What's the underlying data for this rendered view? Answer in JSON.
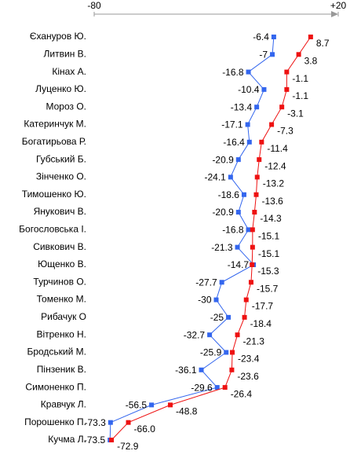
{
  "chart_data": {
    "type": "line",
    "categories": [
      "Єхануров Ю.",
      "Литвин В.",
      "Кінах А.",
      "Луценко Ю.",
      "Мороз О.",
      "Катеринчук М.",
      "Богатирьова Р.",
      "Губський Б.",
      "Зінченко О.",
      "Тимошенко Ю.",
      "Янукович  В.",
      "Богословська І.",
      "Сивкович В.",
      "Ющенко В.",
      "Турчинов О.",
      "Томенко М.",
      "Рибачук О",
      "Вітренко Н.",
      "Бродський М.",
      "Пінзеник В.",
      "Симоненко П.",
      "Кравчук Л.",
      "Порошенко П.",
      "Кучма Л."
    ],
    "series": [
      {
        "color": "#3366ee",
        "values": [
          -6.4,
          -7,
          -16.8,
          -10.4,
          -13.4,
          -17.1,
          -16.4,
          -20.9,
          -24.1,
          -18.6,
          -20.9,
          -16.8,
          -21.3,
          -14.7,
          -27.7,
          -30,
          -25,
          -32.7,
          -25.9,
          -36.1,
          -29.6,
          -56.5,
          -73.3,
          -73.5
        ]
      },
      {
        "color": "#ee1111",
        "values": [
          8.7,
          3.8,
          -1.1,
          -1.1,
          -3.1,
          -7.3,
          -11.4,
          -12.4,
          -13.2,
          -13.6,
          -14.3,
          -15.1,
          -15.1,
          -15.3,
          -15.7,
          -17.7,
          -18.4,
          -21.3,
          -23.4,
          -23.6,
          -26.4,
          -48.8,
          -66,
          -72.9
        ],
        "value_labels": [
          "8.7",
          "3.8",
          "-1.1",
          "-1.1",
          "-3.1",
          "-7.3",
          "-11.4",
          "-12.4",
          "-13.2",
          "-13.6",
          "-14.3",
          "-15.1",
          "-15.1",
          "-15.3",
          "-15.7",
          "-17.7",
          "-18.4",
          "-21.3",
          "-23.4",
          "-23.6",
          "-26.4",
          "-48.8",
          "-66.0",
          "-72.9"
        ]
      }
    ],
    "xlim": [
      -80,
      20
    ],
    "xticks": [
      -80,
      {
        "value": 20,
        "label": "+20"
      }
    ]
  }
}
